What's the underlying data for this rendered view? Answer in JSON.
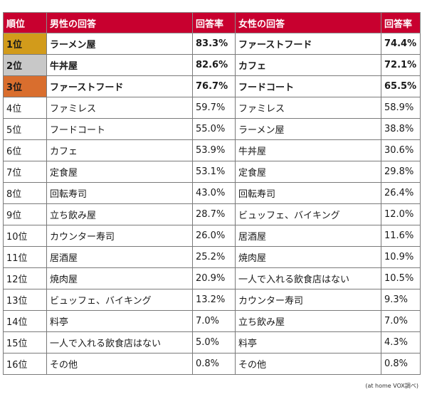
{
  "header": {
    "rank": "順位",
    "male_answer": "男性の回答",
    "male_rate": "回答率",
    "female_answer": "女性の回答",
    "female_rate": "回答率"
  },
  "rows": [
    {
      "rank": "1位",
      "male": "ラーメン屋",
      "male_rate": "83.3%",
      "female": "ファーストフード",
      "female_rate": "74.4%"
    },
    {
      "rank": "2位",
      "male": "牛丼屋",
      "male_rate": "82.6%",
      "female": "カフェ",
      "female_rate": "72.1%"
    },
    {
      "rank": "3位",
      "male": "ファーストフード",
      "male_rate": "76.7%",
      "female": "フードコート",
      "female_rate": "65.5%"
    },
    {
      "rank": "4位",
      "male": "ファミレス",
      "male_rate": "59.7%",
      "female": "ファミレス",
      "female_rate": "58.9%"
    },
    {
      "rank": "5位",
      "male": "フードコート",
      "male_rate": "55.0%",
      "female": "ラーメン屋",
      "female_rate": "38.8%"
    },
    {
      "rank": "6位",
      "male": "カフェ",
      "male_rate": "53.9%",
      "female": "牛丼屋",
      "female_rate": "30.6%"
    },
    {
      "rank": "7位",
      "male": "定食屋",
      "male_rate": "53.1%",
      "female": "定食屋",
      "female_rate": "29.8%"
    },
    {
      "rank": "8位",
      "male": "回転寿司",
      "male_rate": "43.0%",
      "female": "回転寿司",
      "female_rate": "26.4%"
    },
    {
      "rank": "9位",
      "male": "立ち飲み屋",
      "male_rate": "28.7%",
      "female": "ビュッフェ、バイキング",
      "female_rate": "12.0%"
    },
    {
      "rank": "10位",
      "male": "カウンター寿司",
      "male_rate": "26.0%",
      "female": "居酒屋",
      "female_rate": "11.6%"
    },
    {
      "rank": "11位",
      "male": "居酒屋",
      "male_rate": "25.2%",
      "female": "焼肉屋",
      "female_rate": "10.9%"
    },
    {
      "rank": "12位",
      "male": "焼肉屋",
      "male_rate": "20.9%",
      "female": "一人で入れる飲食店はない",
      "female_rate": "10.5%"
    },
    {
      "rank": "13位",
      "male": "ビュッフェ、バイキング",
      "male_rate": "13.2%",
      "female": "カウンター寿司",
      "female_rate": "9.3%"
    },
    {
      "rank": "14位",
      "male": "料亭",
      "male_rate": "7.0%",
      "female": "立ち飲み屋",
      "female_rate": "7.0%"
    },
    {
      "rank": "15位",
      "male": "一人で入れる飲食店はない",
      "male_rate": "5.0%",
      "female": "料亭",
      "female_rate": "4.3%"
    },
    {
      "rank": "16位",
      "male": "その他",
      "male_rate": "0.8%",
      "female": "その他",
      "female_rate": "0.8%"
    }
  ],
  "source": "(at home VOX調べ)",
  "colors": {
    "header_bg": "#c8002f",
    "rank1_bg": "#d29b1b",
    "rank2_bg": "#c8c8c8",
    "rank3_bg": "#d96e2e"
  }
}
